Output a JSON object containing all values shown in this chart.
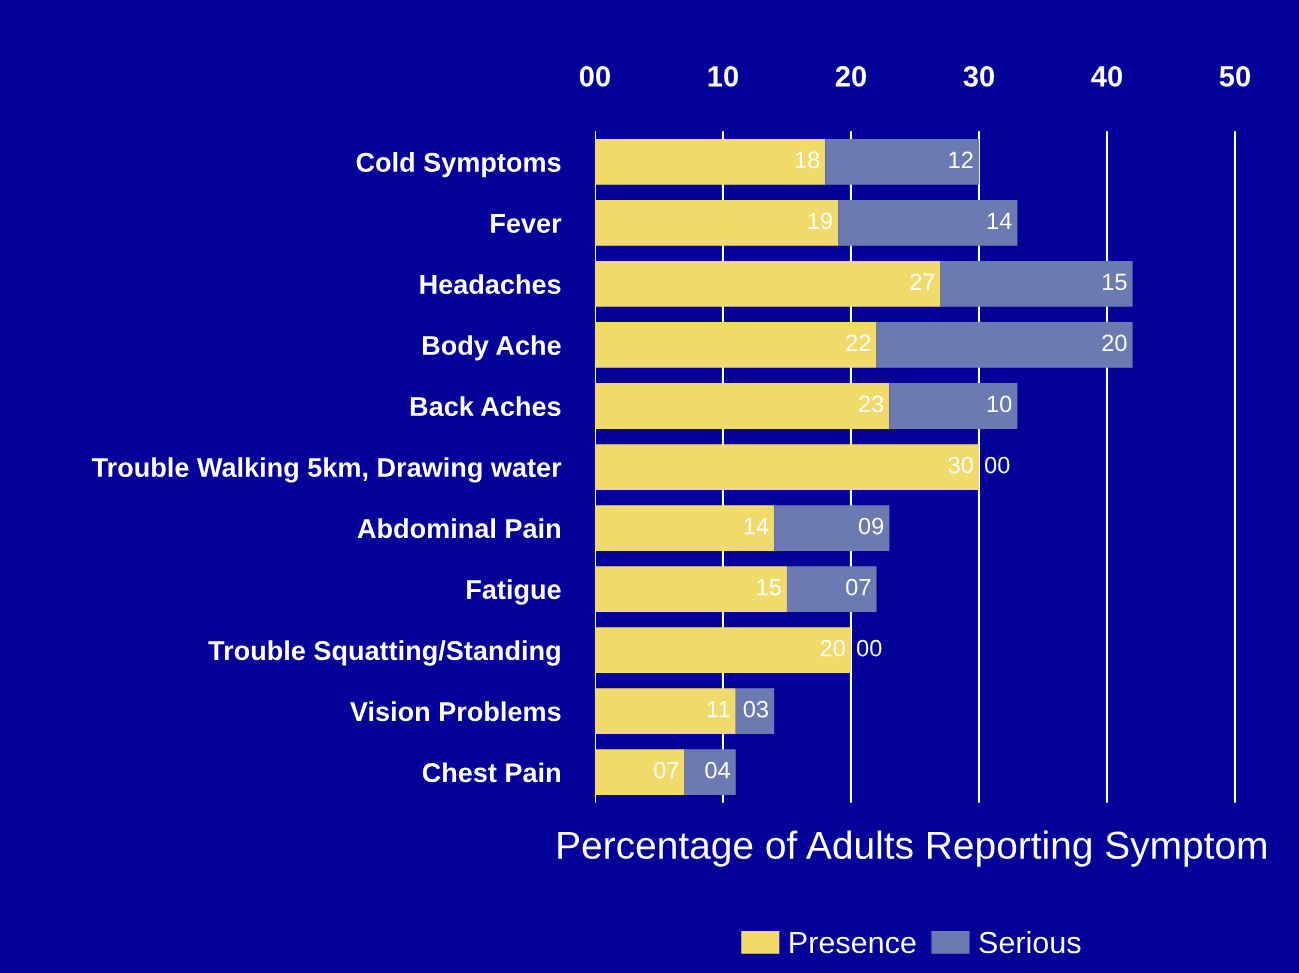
{
  "chart_data": {
    "type": "bar",
    "orientation": "horizontal",
    "stacked": true,
    "xlabel": "Percentage of Adults Reporting Symptom",
    "categories": [
      "Cold Symptoms",
      "Fever",
      "Headaches",
      "Body Ache",
      "Back Aches",
      "Trouble Walking 5km, Drawing water",
      "Abdominal Pain",
      "Fatigue",
      "Trouble Squatting/Standing",
      "Vision Problems",
      "Chest Pain"
    ],
    "series": [
      {
        "name": "Presence",
        "color": "#f0da6a",
        "values": [
          18,
          19,
          27,
          22,
          23,
          30,
          14,
          15,
          20,
          11,
          7
        ],
        "value_labels": [
          "18",
          "19",
          "27",
          "22",
          "23",
          "30",
          "14",
          "15",
          "20",
          "11",
          "07"
        ]
      },
      {
        "name": "Serious",
        "color": "#6b7bb2",
        "values": [
          12,
          14,
          15,
          20,
          10,
          0,
          9,
          7,
          0,
          3,
          4
        ],
        "value_labels": [
          "12",
          "14",
          "15",
          "20",
          "10",
          "00",
          "09",
          "07",
          "00",
          "03",
          "04"
        ]
      }
    ],
    "xlim": [
      0,
      55
    ],
    "xticks": [
      {
        "value": 0,
        "label": "00"
      },
      10,
      20,
      30,
      40,
      50
    ],
    "grid": "x",
    "legend": "bottom"
  }
}
